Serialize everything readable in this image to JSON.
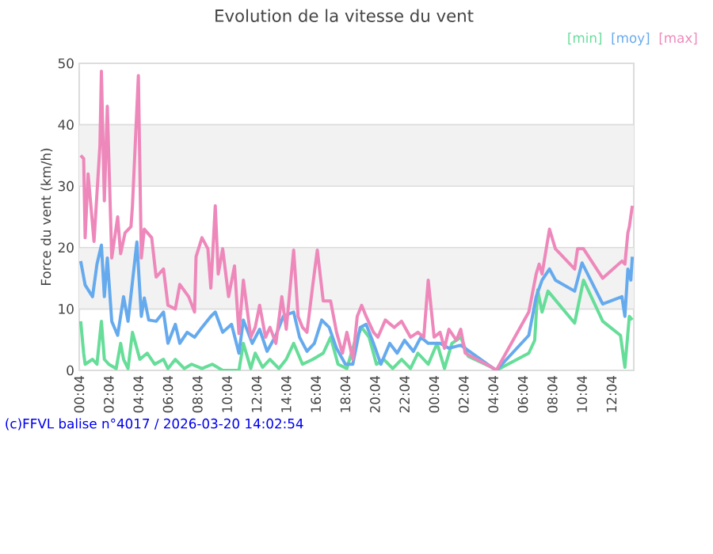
{
  "chart_data": {
    "type": "line",
    "title": "Evolution de la vitesse du vent",
    "ylabel": "Force du vent (km/h)",
    "xlim": [
      "2026-03-19T00:04",
      "2026-03-20T13:34"
    ],
    "ylim": [
      0,
      50
    ],
    "yticks": [
      0,
      10,
      20,
      30,
      40,
      50
    ],
    "xticks": [
      {
        "value": "2026-03-19T00:04",
        "label": "00:04"
      },
      {
        "value": "2026-03-19T02:04",
        "label": "02:04"
      },
      {
        "value": "2026-03-19T04:04",
        "label": "04:04"
      },
      {
        "value": "2026-03-19T06:04",
        "label": "06:04"
      },
      {
        "value": "2026-03-19T08:04",
        "label": "08:04"
      },
      {
        "value": "2026-03-19T10:04",
        "label": "10:04"
      },
      {
        "value": "2026-03-19T12:04",
        "label": "12:04"
      },
      {
        "value": "2026-03-19T14:04",
        "label": "14:04"
      },
      {
        "value": "2026-03-19T16:04",
        "label": "16:04"
      },
      {
        "value": "2026-03-19T18:04",
        "label": "18:04"
      },
      {
        "value": "2026-03-19T20:04",
        "label": "20:04"
      },
      {
        "value": "2026-03-19T22:04",
        "label": "22:04"
      },
      {
        "value": "2026-03-20T00:04",
        "label": "00:04"
      },
      {
        "value": "2026-03-20T02:04",
        "label": "02:04"
      },
      {
        "value": "2026-03-20T04:04",
        "label": "04:04"
      },
      {
        "value": "2026-03-20T06:04",
        "label": "06:04"
      },
      {
        "value": "2026-03-20T08:04",
        "label": "08:04"
      },
      {
        "value": "2026-03-20T10:04",
        "label": "10:04"
      },
      {
        "value": "2026-03-20T12:04",
        "label": "12:04"
      }
    ],
    "grid": "y",
    "legend": "top right",
    "marker": "none",
    "line_style": "solid",
    "bands": [
      {
        "axis": "y",
        "from": 10,
        "to": 20,
        "color": "#f2f2f2"
      },
      {
        "axis": "y",
        "from": 30,
        "to": 40,
        "color": "#f2f2f2"
      }
    ],
    "annotations": [
      "(c)FFVL balise n°4017 / 2026-03-20 14:02:54"
    ],
    "series": [
      {
        "name": "[min]",
        "color": "#66dd99",
        "x": [
          "2026-03-19T00:10",
          "2026-03-19T00:22",
          "2026-03-19T00:28",
          "2026-03-19T00:58",
          "2026-03-19T01:16",
          "2026-03-19T01:34",
          "2026-03-19T01:46",
          "2026-03-19T02:04",
          "2026-03-19T02:34",
          "2026-03-19T02:52",
          "2026-03-19T03:04",
          "2026-03-19T03:22",
          "2026-03-19T03:40",
          "2026-03-19T04:10",
          "2026-03-19T04:40",
          "2026-03-19T05:10",
          "2026-03-19T05:46",
          "2026-03-19T06:04",
          "2026-03-19T06:34",
          "2026-03-19T07:10",
          "2026-03-19T07:40",
          "2026-03-19T08:22",
          "2026-03-19T09:04",
          "2026-03-19T09:46",
          "2026-03-19T10:52",
          "2026-03-19T11:10",
          "2026-03-19T11:40",
          "2026-03-19T11:58",
          "2026-03-19T12:28",
          "2026-03-19T12:58",
          "2026-03-19T13:34",
          "2026-03-19T14:04",
          "2026-03-19T14:34",
          "2026-03-19T15:10",
          "2026-03-19T15:52",
          "2026-03-19T16:34",
          "2026-03-19T17:04",
          "2026-03-19T17:34",
          "2026-03-19T18:10",
          "2026-03-19T18:40",
          "2026-03-19T19:10",
          "2026-03-19T19:40",
          "2026-03-19T20:10",
          "2026-03-19T20:40",
          "2026-03-19T21:16",
          "2026-03-19T21:52",
          "2026-03-19T22:28",
          "2026-03-19T22:58",
          "2026-03-19T23:40",
          "2026-03-20T00:16",
          "2026-03-20T00:46",
          "2026-03-20T01:16",
          "2026-03-20T01:52",
          "2026-03-20T02:22",
          "2026-03-20T03:58",
          "2026-03-20T04:16",
          "2026-03-20T06:28",
          "2026-03-20T06:52",
          "2026-03-20T07:04",
          "2026-03-20T07:22",
          "2026-03-20T07:46",
          "2026-03-20T09:34",
          "2026-03-20T10:10",
          "2026-03-20T11:28",
          "2026-03-20T12:40",
          "2026-03-20T12:58",
          "2026-03-20T13:16",
          "2026-03-20T13:28"
        ],
        "values": [
          8,
          2.8,
          1,
          1.8,
          1,
          8,
          1.8,
          1,
          0.3,
          4.4,
          1.8,
          0.3,
          6.2,
          1.8,
          2.8,
          1,
          1.8,
          0.3,
          1.8,
          0.3,
          1,
          0.3,
          1,
          0,
          0,
          4.4,
          0.3,
          2.8,
          0.5,
          1.8,
          0.3,
          1.8,
          4.4,
          1,
          1.8,
          2.8,
          5.4,
          1,
          0.3,
          4.4,
          7,
          5.4,
          1,
          1.8,
          0.3,
          1.8,
          0.3,
          2.8,
          1,
          4.4,
          0.3,
          4.4,
          5.4,
          2.3,
          0.5,
          0,
          2.8,
          4.9,
          13.1,
          9.5,
          12.9,
          7.7,
          14.7,
          8,
          5.7,
          0.5,
          8.8,
          8.2
        ]
      },
      {
        "name": "[moy]",
        "color": "#66aaee",
        "x": [
          "2026-03-19T00:10",
          "2026-03-19T00:28",
          "2026-03-19T00:58",
          "2026-03-19T01:16",
          "2026-03-19T01:34",
          "2026-03-19T01:46",
          "2026-03-19T01:58",
          "2026-03-19T02:16",
          "2026-03-19T02:40",
          "2026-03-19T03:04",
          "2026-03-19T03:22",
          "2026-03-19T03:58",
          "2026-03-19T04:16",
          "2026-03-19T04:28",
          "2026-03-19T04:46",
          "2026-03-19T05:16",
          "2026-03-19T05:46",
          "2026-03-19T06:04",
          "2026-03-19T06:34",
          "2026-03-19T06:52",
          "2026-03-19T07:22",
          "2026-03-19T07:52",
          "2026-03-19T08:22",
          "2026-03-19T08:58",
          "2026-03-19T09:16",
          "2026-03-19T09:46",
          "2026-03-19T10:22",
          "2026-03-19T10:52",
          "2026-03-19T11:10",
          "2026-03-19T11:46",
          "2026-03-19T12:16",
          "2026-03-19T12:46",
          "2026-03-19T13:22",
          "2026-03-19T13:52",
          "2026-03-19T14:34",
          "2026-03-19T14:58",
          "2026-03-19T15:28",
          "2026-03-19T15:58",
          "2026-03-19T16:28",
          "2026-03-19T16:58",
          "2026-03-19T17:28",
          "2026-03-19T18:04",
          "2026-03-19T18:34",
          "2026-03-19T19:04",
          "2026-03-19T19:28",
          "2026-03-19T19:58",
          "2026-03-19T20:28",
          "2026-03-19T21:04",
          "2026-03-19T21:34",
          "2026-03-19T22:04",
          "2026-03-19T22:40",
          "2026-03-19T23:10",
          "2026-03-19T23:40",
          "2026-03-20T00:28",
          "2026-03-20T01:04",
          "2026-03-20T01:52",
          "2026-03-20T03:58",
          "2026-03-20T04:16",
          "2026-03-20T06:28",
          "2026-03-20T06:58",
          "2026-03-20T07:22",
          "2026-03-20T07:52",
          "2026-03-20T08:16",
          "2026-03-20T09:34",
          "2026-03-20T10:04",
          "2026-03-20T11:28",
          "2026-03-20T12:46",
          "2026-03-20T12:58",
          "2026-03-20T13:10",
          "2026-03-20T13:22",
          "2026-03-20T13:28"
        ],
        "values": [
          17.8,
          13.9,
          12,
          17.3,
          20.4,
          12,
          18.3,
          8,
          5.7,
          12,
          8,
          20.9,
          8.8,
          11.8,
          8.2,
          8,
          9.5,
          4.4,
          7.5,
          4.4,
          6.2,
          5.4,
          7,
          8.8,
          9.5,
          6.2,
          7.5,
          2.8,
          8.2,
          4.4,
          6.7,
          3.1,
          5.7,
          8.8,
          9.5,
          5.4,
          3.1,
          4.4,
          8.2,
          7,
          3.6,
          1,
          1,
          7,
          7.5,
          4.4,
          1,
          4.4,
          2.8,
          4.9,
          3.1,
          5.4,
          4.4,
          4.4,
          3.6,
          4.1,
          0.5,
          0,
          5.7,
          12,
          14.7,
          16.5,
          14.7,
          12.9,
          17.5,
          10.8,
          12,
          8.8,
          16.5,
          14.7,
          18.5
        ]
      },
      {
        "name": "[max]",
        "color": "#ee88bb",
        "x": [
          "2026-03-19T00:10",
          "2026-03-19T00:22",
          "2026-03-19T00:28",
          "2026-03-19T00:40",
          "2026-03-19T01:04",
          "2026-03-19T01:28",
          "2026-03-19T01:34",
          "2026-03-19T01:46",
          "2026-03-19T01:58",
          "2026-03-19T02:16",
          "2026-03-19T02:40",
          "2026-03-19T02:52",
          "2026-03-19T03:10",
          "2026-03-19T03:34",
          "2026-03-19T03:40",
          "2026-03-19T04:04",
          "2026-03-19T04:16",
          "2026-03-19T04:28",
          "2026-03-19T04:58",
          "2026-03-19T05:16",
          "2026-03-19T05:46",
          "2026-03-19T06:04",
          "2026-03-19T06:34",
          "2026-03-19T06:52",
          "2026-03-19T07:28",
          "2026-03-19T07:52",
          "2026-03-19T07:58",
          "2026-03-19T08:22",
          "2026-03-19T08:46",
          "2026-03-19T08:58",
          "2026-03-19T09:16",
          "2026-03-19T09:28",
          "2026-03-19T09:46",
          "2026-03-19T10:10",
          "2026-03-19T10:34",
          "2026-03-19T10:52",
          "2026-03-19T11:10",
          "2026-03-19T11:40",
          "2026-03-19T11:58",
          "2026-03-19T12:16",
          "2026-03-19T12:40",
          "2026-03-19T12:58",
          "2026-03-19T13:22",
          "2026-03-19T13:46",
          "2026-03-19T14:04",
          "2026-03-19T14:34",
          "2026-03-19T14:52",
          "2026-03-19T15:10",
          "2026-03-19T15:28",
          "2026-03-19T15:52",
          "2026-03-19T16:10",
          "2026-03-19T16:34",
          "2026-03-19T16:46",
          "2026-03-19T17:04",
          "2026-03-19T17:28",
          "2026-03-19T17:52",
          "2026-03-19T18:10",
          "2026-03-19T18:34",
          "2026-03-19T18:52",
          "2026-03-19T19:10",
          "2026-03-19T19:28",
          "2026-03-19T19:58",
          "2026-03-19T20:16",
          "2026-03-19T20:46",
          "2026-03-19T21:22",
          "2026-03-19T21:52",
          "2026-03-19T22:28",
          "2026-03-19T22:58",
          "2026-03-19T23:22",
          "2026-03-19T23:40",
          "2026-03-20T00:04",
          "2026-03-20T00:28",
          "2026-03-20T00:46",
          "2026-03-20T01:04",
          "2026-03-20T01:34",
          "2026-03-20T01:52",
          "2026-03-20T02:10",
          "2026-03-20T03:58",
          "2026-03-20T04:16",
          "2026-03-20T06:28",
          "2026-03-20T06:58",
          "2026-03-20T07:10",
          "2026-03-20T07:22",
          "2026-03-20T07:52",
          "2026-03-20T08:16",
          "2026-03-20T09:34",
          "2026-03-20T09:46",
          "2026-03-20T10:10",
          "2026-03-20T11:28",
          "2026-03-20T12:46",
          "2026-03-20T12:58",
          "2026-03-20T13:10",
          "2026-03-20T13:16",
          "2026-03-20T13:28"
        ],
        "values": [
          35,
          34.5,
          21.6,
          32,
          21,
          36.6,
          48.7,
          27.6,
          43,
          18.3,
          25,
          19,
          22.4,
          23.4,
          26.8,
          48,
          18.3,
          23,
          21.6,
          15.2,
          16.5,
          10.6,
          10,
          14,
          12,
          9.5,
          18.5,
          21.6,
          19.8,
          13.4,
          26.8,
          15.7,
          19.8,
          12,
          17,
          6,
          14.7,
          5.4,
          7,
          10.6,
          5.4,
          7,
          4.4,
          12,
          6.7,
          19.6,
          8.8,
          7,
          6.2,
          14,
          19.6,
          11.3,
          11.3,
          11.3,
          6.2,
          2.8,
          6.2,
          1.8,
          8.8,
          10.6,
          8.8,
          6.2,
          5.4,
          8.2,
          7,
          8,
          5.4,
          6.2,
          5.4,
          14.7,
          5.4,
          6.2,
          3.6,
          6.7,
          4.9,
          6.7,
          2.8,
          0.5,
          0,
          9.5,
          15.7,
          17.3,
          15.7,
          23,
          19.8,
          16.5,
          19.8,
          19.8,
          15,
          17.8,
          17.3,
          22.4,
          23.4,
          26.8
        ]
      }
    ]
  }
}
